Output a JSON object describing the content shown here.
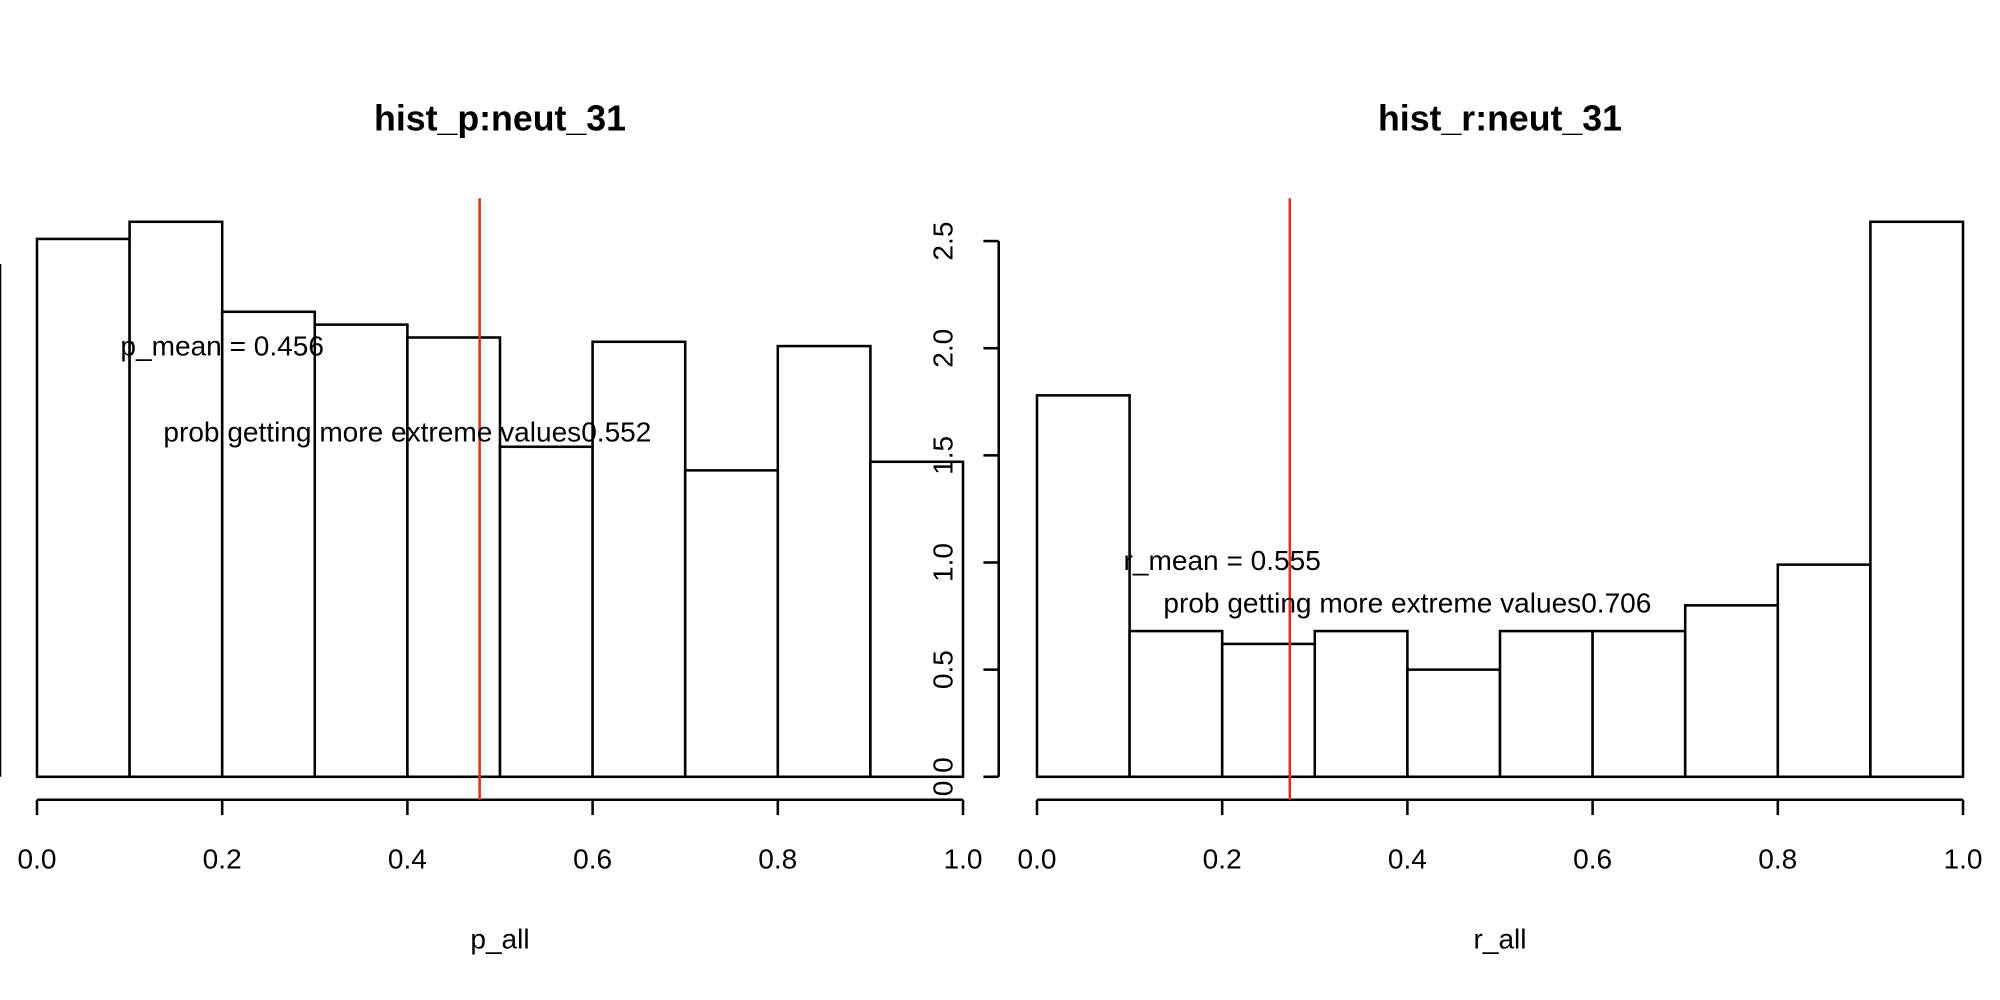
{
  "chart_data": [
    {
      "type": "histogram",
      "title": "hist_p:neut_31",
      "xlabel": "p_all",
      "bins": [
        0,
        0.1,
        0.2,
        0.3,
        0.4,
        0.5,
        0.6,
        0.7,
        0.8,
        0.9,
        1.0
      ],
      "values": [
        2.51,
        2.59,
        2.17,
        2.11,
        2.05,
        1.54,
        2.03,
        1.43,
        2.01,
        1.47
      ],
      "color": "#ffffff",
      "edge_color": "#000000",
      "xlim": [
        0,
        1
      ],
      "ylim": [
        0,
        2.7
      ],
      "xticks": [
        {
          "value": 0,
          "label": "0.0"
        },
        {
          "value": 0.2,
          "label": "0.2"
        },
        {
          "value": 0.4,
          "label": "0.4"
        },
        {
          "value": 0.6,
          "label": "0.6"
        },
        {
          "value": 0.8,
          "label": "0.8"
        },
        {
          "value": 1,
          "label": "1.0"
        }
      ],
      "yticks": [],
      "vline": {
        "value": 0.478,
        "color": "#e0301e"
      },
      "annotations": [
        "p_mean = 0.456",
        "prob getting more extreme values0.552"
      ]
    },
    {
      "type": "histogram",
      "title": "hist_r:neut_31",
      "xlabel": "r_all",
      "bins": [
        0,
        0.1,
        0.2,
        0.3,
        0.4,
        0.5,
        0.6,
        0.7,
        0.8,
        0.9,
        1.0
      ],
      "values": [
        1.78,
        0.68,
        0.62,
        0.68,
        0.5,
        0.68,
        0.68,
        0.8,
        0.99,
        2.59
      ],
      "color": "#ffffff",
      "edge_color": "#000000",
      "xlim": [
        0,
        1
      ],
      "ylim": [
        0,
        2.7
      ],
      "xticks": [
        {
          "value": 0,
          "label": "0.0"
        },
        {
          "value": 0.2,
          "label": "0.2"
        },
        {
          "value": 0.4,
          "label": "0.4"
        },
        {
          "value": 0.6,
          "label": "0.6"
        },
        {
          "value": 0.8,
          "label": "0.8"
        },
        {
          "value": 1,
          "label": "1.0"
        }
      ],
      "yticks": [
        {
          "value": 0,
          "label": "0.0"
        },
        {
          "value": 0.5,
          "label": "0.5"
        },
        {
          "value": 1,
          "label": "1.0"
        },
        {
          "value": 1.5,
          "label": "1.5"
        },
        {
          "value": 2,
          "label": "2.0"
        },
        {
          "value": 2.5,
          "label": "2.5"
        }
      ],
      "vline": {
        "value": 0.273,
        "color": "#e0301e"
      },
      "annotations": [
        "r_mean = 0.555",
        "prob getting more extreme values0.706"
      ]
    }
  ]
}
